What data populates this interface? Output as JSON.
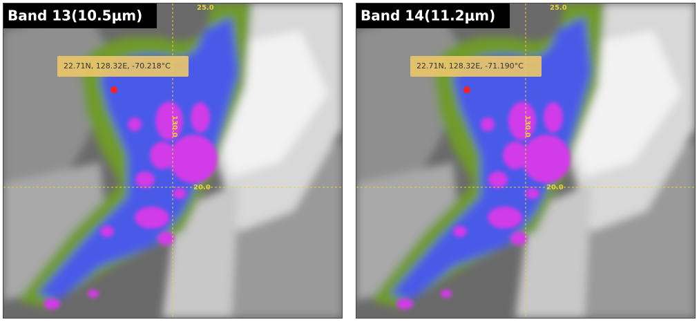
{
  "panels": [
    {
      "title": "Band 13(10.5μm)",
      "tooltip": "22.71N, 128.32E, -70.218°C",
      "grid_labels": [
        "25.0",
        "130.0",
        "20.0"
      ]
    },
    {
      "title": "Band 14(11.2μm)",
      "tooltip": "22.71N, 128.32E, -71.190°C",
      "grid_labels": [
        "25.0",
        "130.0",
        "20.0"
      ]
    }
  ]
}
